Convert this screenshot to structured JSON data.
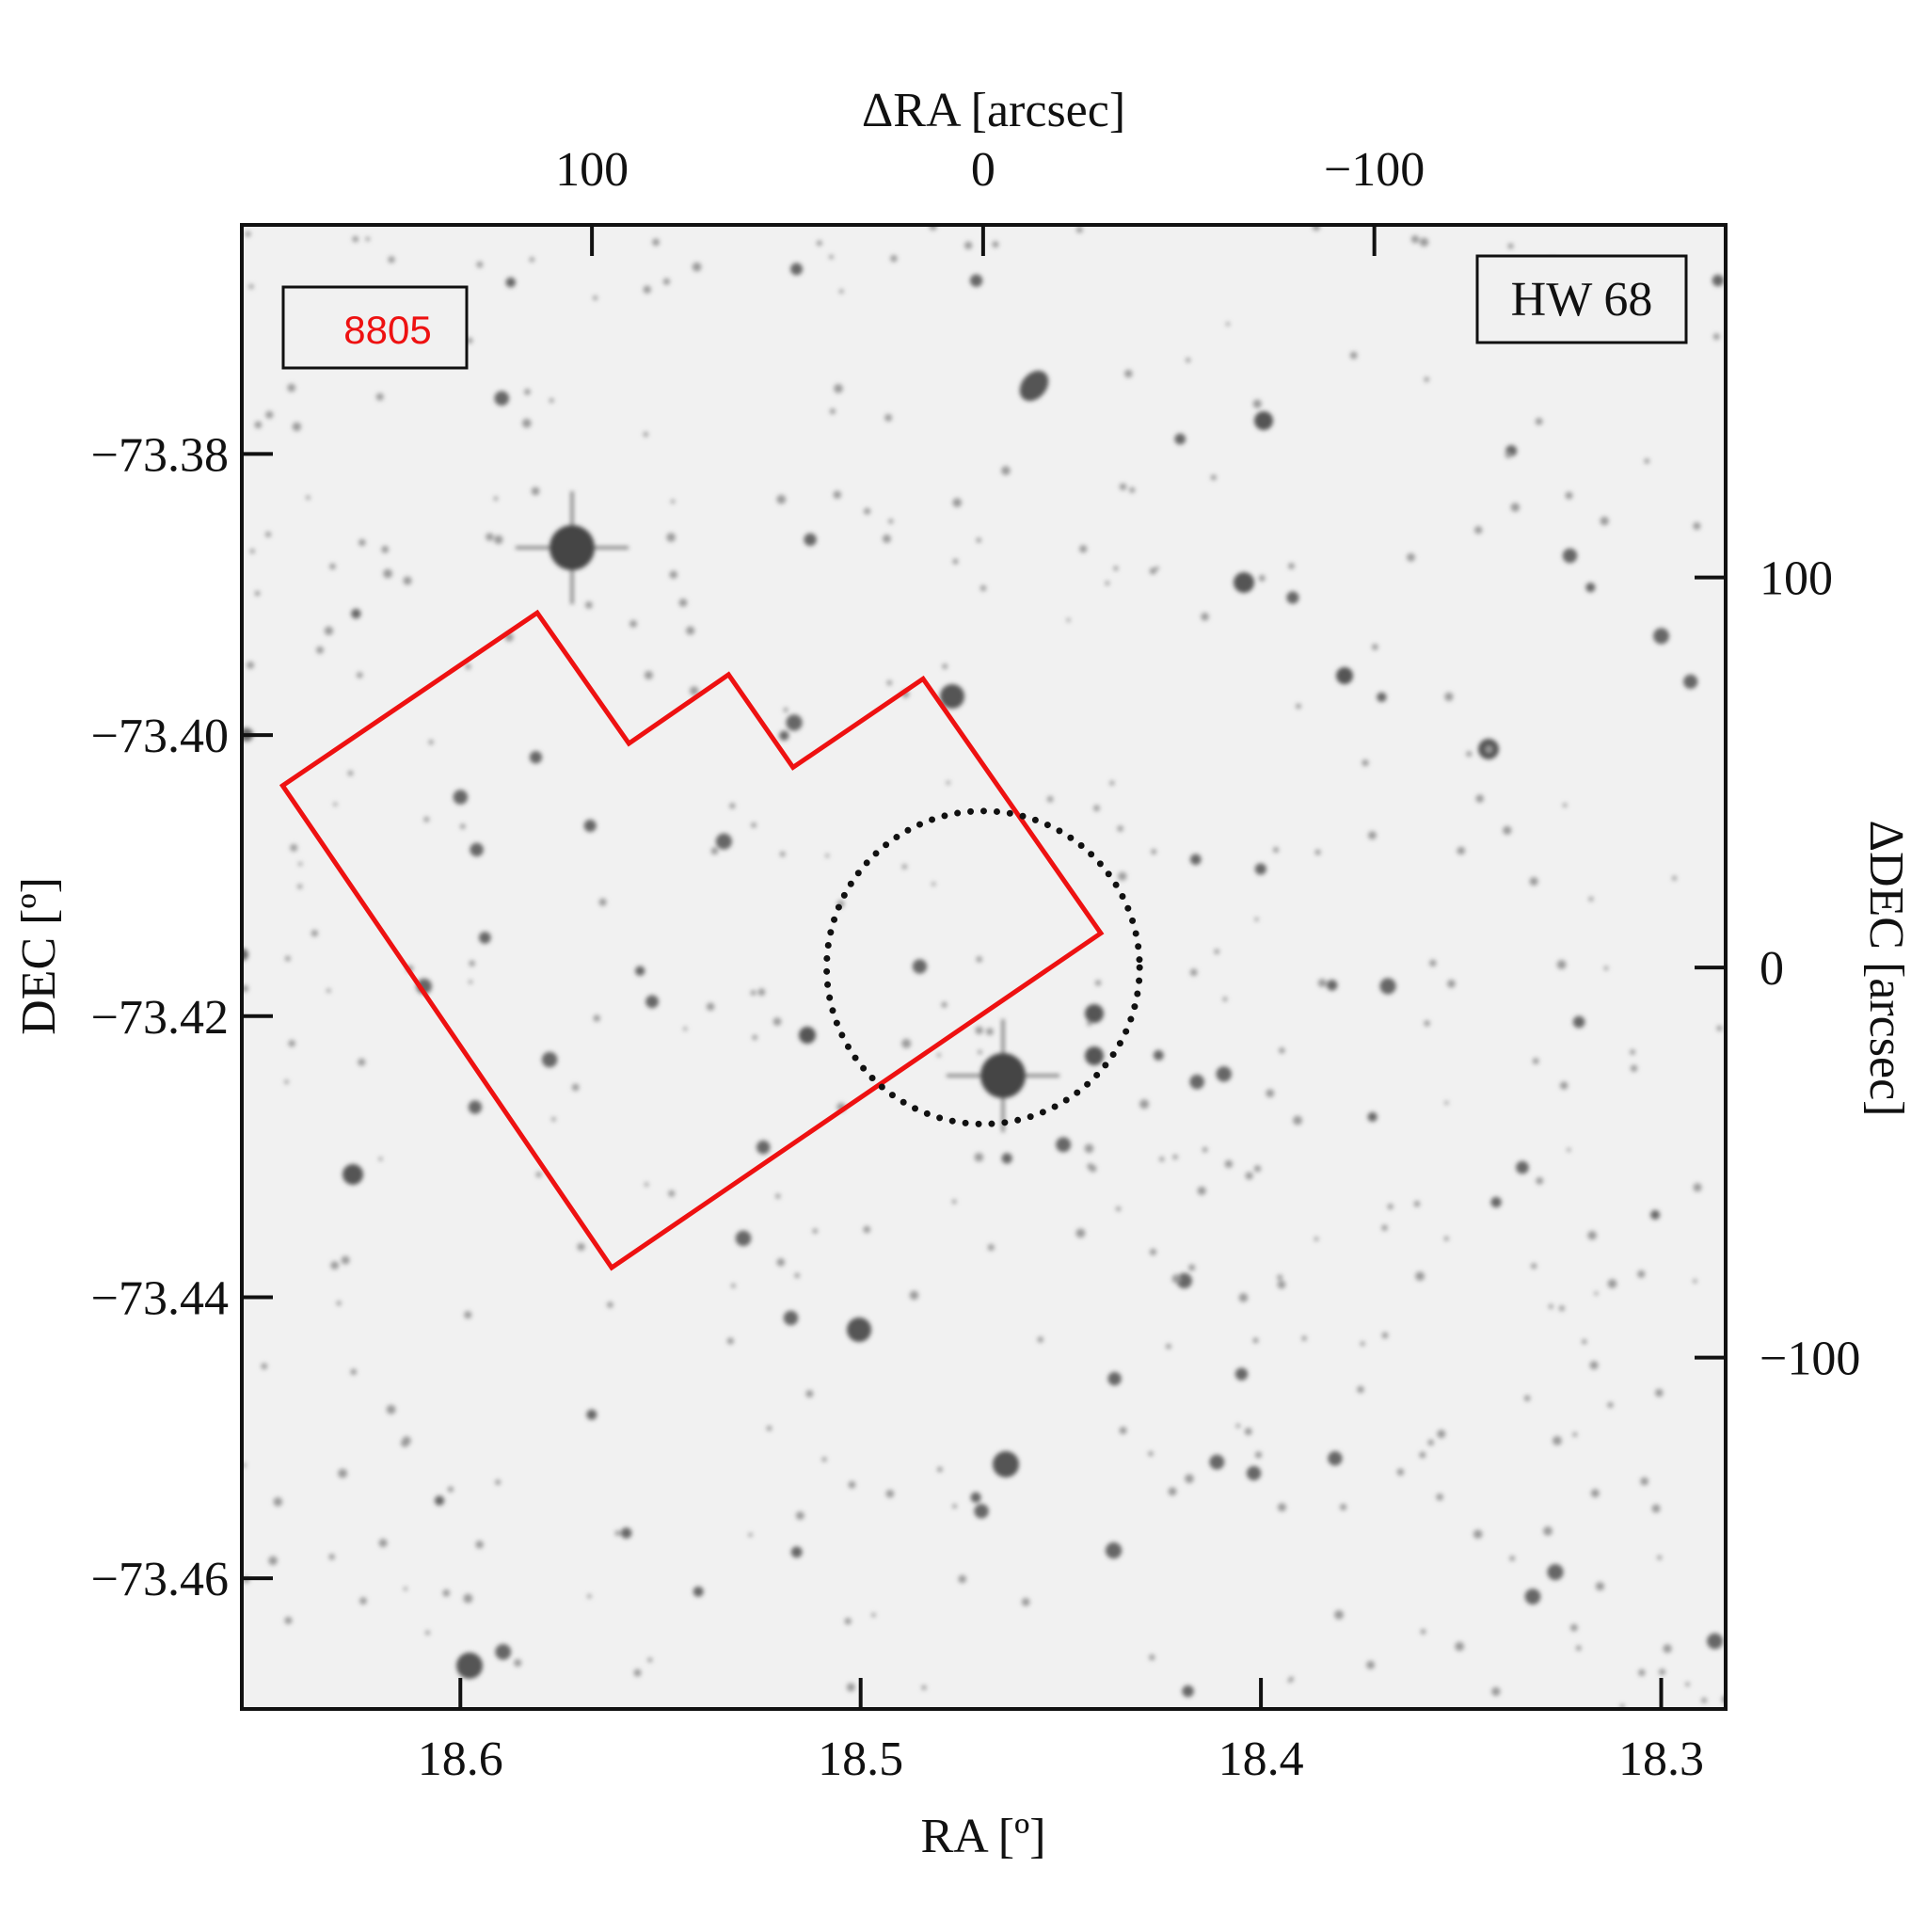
{
  "chart_data": {
    "type": "sky-image",
    "x_label": "RA [º]",
    "y_label": "DEC [º]",
    "x2_label": "ΔRA [arcsec]",
    "y2_label": "ΔDEC [arcsec]",
    "xlim": [
      18.6546,
      18.2839
    ],
    "xticks": [
      18.6,
      18.5,
      18.4,
      18.3
    ],
    "ylim": [
      -73.3637,
      -73.4693
    ],
    "yticks": [
      {
        "value": -73.38,
        "label": "−73.38"
      },
      {
        "value": -73.4,
        "label": "−73.40"
      },
      {
        "value": -73.42,
        "label": "−73.42"
      },
      {
        "value": -73.44,
        "label": "−73.44"
      },
      {
        "value": -73.46,
        "label": "−73.46"
      }
    ],
    "x2lim": [
      189.5,
      -189.8
    ],
    "x2ticks": [
      100,
      0,
      {
        "value": -100,
        "label": "−100"
      }
    ],
    "y2lim": [
      190.4,
      -190.1
    ],
    "y2ticks": [
      100,
      0,
      {
        "value": -100,
        "label": "−100"
      }
    ],
    "footprint": {
      "name": "8805",
      "color": "#ee1111",
      "ra": [
        18.6444,
        18.5808,
        18.5579,
        18.533,
        18.5169,
        18.4844,
        18.44,
        18.5622
      ],
      "dec": [
        -73.4036,
        -73.3913,
        -73.4006,
        -73.3957,
        -73.4023,
        -73.396,
        -73.4141,
        -73.4379
      ]
    },
    "cluster": {
      "name": "HW 68",
      "x": 0,
      "y": 0,
      "radius": 40
    }
  }
}
